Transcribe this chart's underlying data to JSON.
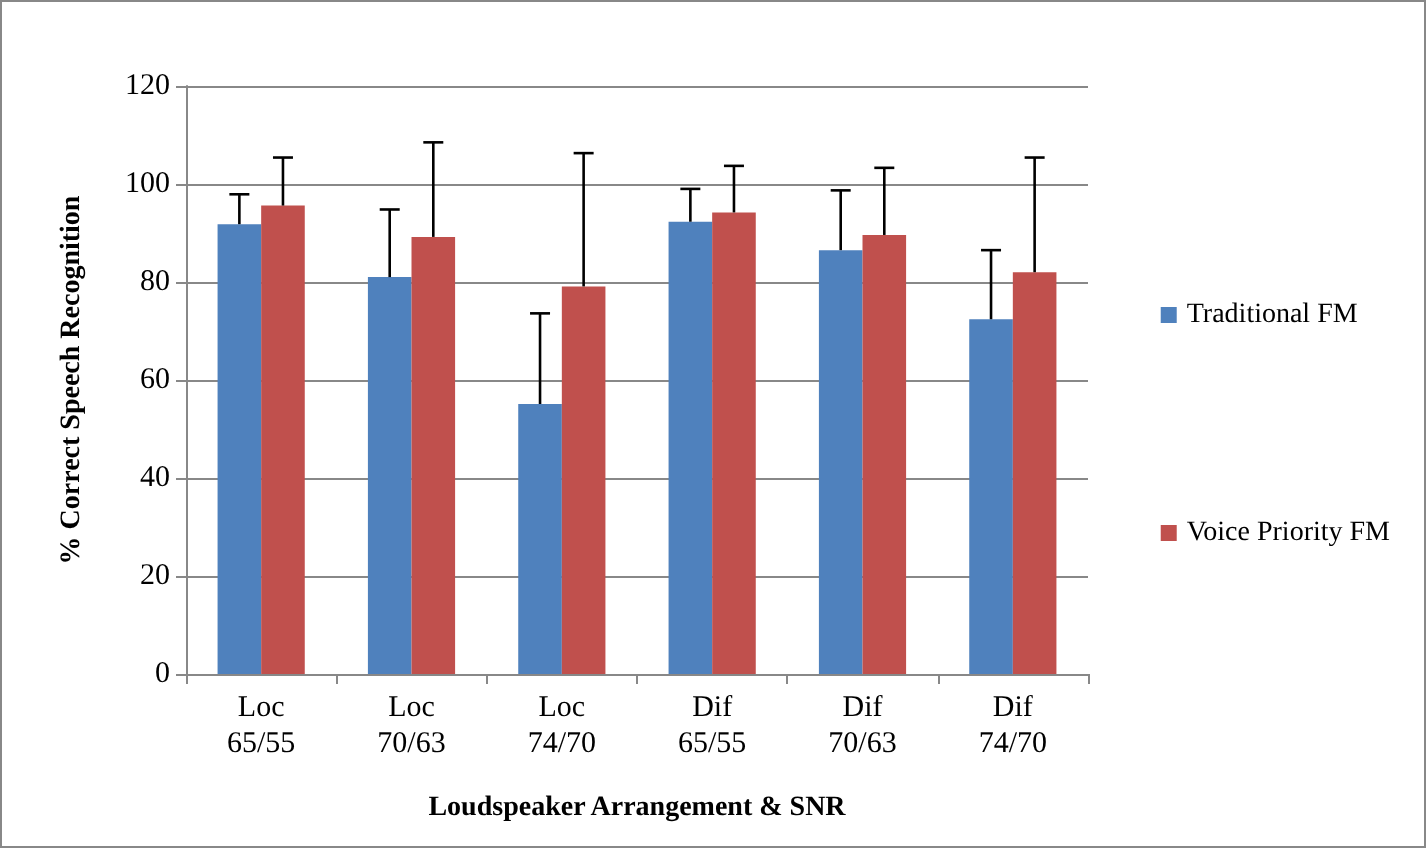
{
  "chart_data": {
    "type": "bar",
    "xlabel": "Loudspeaker Arrangement & SNR",
    "ylabel": "% Correct Speech Recognition",
    "categories": [
      "Loc\n65/55",
      "Loc\n70/63",
      "Loc\n74/70",
      "Dif\n65/55",
      "Dif\n70/63",
      "Dif\n74/70"
    ],
    "series": [
      {
        "name": "Traditional FM",
        "color": "#4f81bd",
        "values": [
          91.8,
          81.0,
          55.1,
          92.3,
          86.5,
          72.4
        ],
        "errors": [
          [
            91.8,
            97.9
          ],
          [
            81.0,
            94.8
          ],
          [
            55.1,
            73.6
          ],
          [
            92.3,
            99.0
          ],
          [
            86.5,
            98.7
          ],
          [
            72.4,
            86.5
          ]
        ]
      },
      {
        "name": "Voice Priority FM",
        "color": "#c0504d",
        "values": [
          95.6,
          89.2,
          79.1,
          94.2,
          89.6,
          82.0
        ],
        "errors": [
          [
            95.6,
            105.4
          ],
          [
            89.2,
            108.5
          ],
          [
            79.1,
            106.3
          ],
          [
            94.2,
            103.7
          ],
          [
            89.6,
            103.3
          ],
          [
            82.0,
            105.4
          ]
        ]
      }
    ],
    "ylim": [
      0,
      120
    ],
    "yticks": [
      0,
      20,
      40,
      60,
      80,
      100,
      120
    ],
    "grid": "y",
    "legend": "right"
  }
}
